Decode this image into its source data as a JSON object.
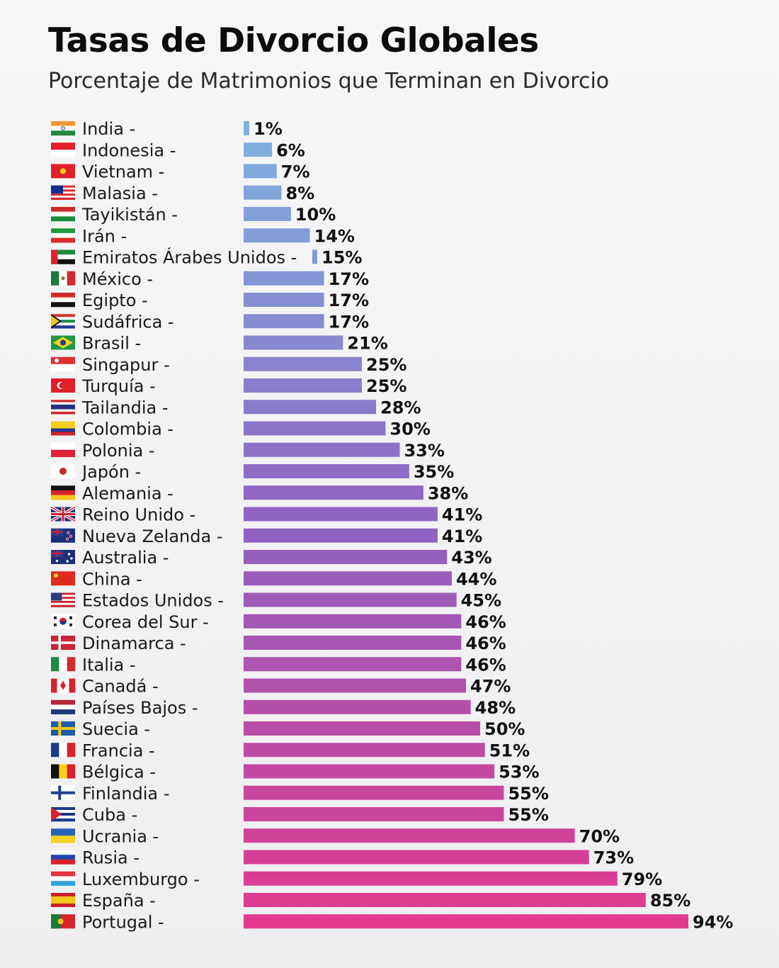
{
  "header": {
    "title": "Tasas de Divorcio Globales",
    "subtitle": "Porcentaje de Matrimonios que Terminan en Divorcio"
  },
  "chart_data": {
    "type": "bar",
    "orientation": "horizontal",
    "title": "Tasas de Divorcio Globales",
    "subtitle": "Porcentaje de Matrimonios que Terminan en Divorcio",
    "xlabel": "",
    "ylabel": "",
    "value_suffix": "%",
    "xlim": [
      0,
      94
    ],
    "grid": false,
    "legend": "none",
    "categories": [
      "India",
      "Indonesia",
      "Vietnam",
      "Malasia",
      "Tayikistán",
      "Irán",
      "Emiratos Árabes Unidos",
      "México",
      "Egipto",
      "Sudáfrica",
      "Brasil",
      "Singapur",
      "Turquía",
      "Tailandia",
      "Colombia",
      "Polonia",
      "Japón",
      "Alemania",
      "Reino Unido",
      "Nueva Zelanda",
      "Australia",
      "China",
      "Estados Unidos",
      "Corea del Sur",
      "Dinamarca",
      "Italia",
      "Canadá",
      "Países Bajos",
      "Suecia",
      "Francia",
      "Bélgica",
      "Finlandia",
      "Cuba",
      "Ucrania",
      "Rusia",
      "Luxemburgo",
      "España",
      "Portugal"
    ],
    "values": [
      1,
      6,
      7,
      8,
      10,
      14,
      15,
      17,
      17,
      17,
      21,
      25,
      25,
      28,
      30,
      33,
      35,
      38,
      41,
      41,
      43,
      44,
      45,
      46,
      46,
      46,
      47,
      48,
      50,
      51,
      53,
      55,
      55,
      70,
      73,
      79,
      85,
      94
    ],
    "label_separator": " -",
    "colors": {
      "low": "#7fb2e0",
      "mid": "#8f62c2",
      "high": "#e23a8e"
    }
  },
  "flags": [
    "india-flag",
    "indonesia-flag",
    "vietnam-flag",
    "malasia-flag",
    "tayikistan-flag",
    "iran-flag",
    "emiratos-arabes-unidos-flag",
    "mexico-flag",
    "egipto-flag",
    "sudafrica-flag",
    "brasil-flag",
    "singapur-flag",
    "turquia-flag",
    "tailandia-flag",
    "colombia-flag",
    "polonia-flag",
    "japon-flag",
    "alemania-flag",
    "reino-unido-flag",
    "nueva-zelanda-flag",
    "australia-flag",
    "china-flag",
    "estados-unidos-flag",
    "corea-del-sur-flag",
    "dinamarca-flag",
    "italia-flag",
    "canada-flag",
    "paises-bajos-flag",
    "suecia-flag",
    "francia-flag",
    "belgica-flag",
    "finlandia-flag",
    "cuba-flag",
    "ucrania-flag",
    "rusia-flag",
    "luxemburgo-flag",
    "espana-flag",
    "portugal-flag"
  ]
}
